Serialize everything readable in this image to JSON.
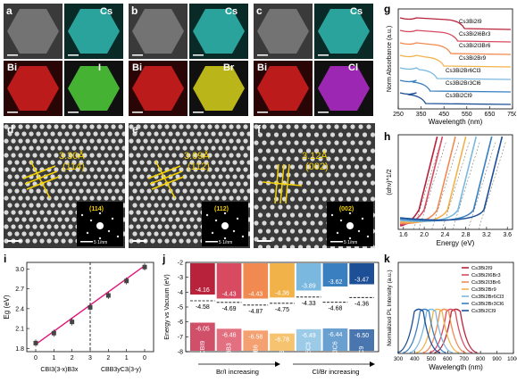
{
  "panels_ac": [
    {
      "letter": "a",
      "labels": [
        "Cs",
        "Bi",
        "I"
      ],
      "colors": [
        "#2fb8b0",
        "#d62020",
        "#4fcf3a"
      ]
    },
    {
      "letter": "b",
      "labels": [
        "Cs",
        "Bi",
        "Br"
      ],
      "colors": [
        "#2fb8b0",
        "#d62020",
        "#d8d21a"
      ]
    },
    {
      "letter": "c",
      "labels": [
        "Cs",
        "Bi",
        "Cl"
      ],
      "colors": [
        "#2fb8b0",
        "#d62020",
        "#b52ccf"
      ]
    }
  ],
  "panels_df": [
    {
      "letter": "d",
      "d": "3.30Å",
      "hkl": "(114)",
      "inset_hkl": "(114)",
      "inset_scale": "5 1/nm"
    },
    {
      "letter": "e",
      "d": "3.09Å",
      "hkl": "(112)",
      "inset_hkl": "(112)",
      "inset_scale": "5 1/nm"
    },
    {
      "letter": "f",
      "d": "3.12Å",
      "hkl": "(002)",
      "inset_hkl": "(002)",
      "inset_scale": "5 1/nm"
    }
  ],
  "panel_g": {
    "letter": "g",
    "ylabel": "Norm Absorbance (a.u.)",
    "xlabel": "Wavelength (nm)",
    "xticks": [
      "250",
      "350",
      "450",
      "550",
      "650",
      "750"
    ],
    "series": [
      {
        "name": "Cs3Bi2I9",
        "color": "#b8223a"
      },
      {
        "name": "Cs3Bi2I6Br3",
        "color": "#d84a60"
      },
      {
        "name": "Cs3Bi2I3Br6",
        "color": "#f08a50"
      },
      {
        "name": "Cs3Bi2Br9",
        "color": "#f2b24a"
      },
      {
        "name": "Cs3Bi2Br6Cl3",
        "color": "#7ab8e0"
      },
      {
        "name": "Cs3Bi2Br3Cl6",
        "color": "#3a7fc0"
      },
      {
        "name": "Cs3Bi2Cl9",
        "color": "#1d4f96"
      }
    ]
  },
  "panel_h": {
    "letter": "h",
    "ylabel": "(αhν)^1/2",
    "xlabel": "Energy (eV)",
    "xticks": [
      "1.6",
      "2.0",
      "2.4",
      "2.8",
      "3.2",
      "3.6"
    ]
  },
  "panel_i": {
    "letter": "i",
    "ylabel": "Eg (eV)",
    "yticks": [
      "1.8",
      "2.1",
      "2.4",
      "2.7",
      "3.0"
    ],
    "xticks": [
      "0",
      "1",
      "2",
      "3",
      "2",
      "1",
      "0"
    ],
    "xlabel_left": "CBI3(3-x)B3x",
    "xlabel_right": "CBB3yC3(3-y)"
  },
  "panel_j": {
    "letter": "j",
    "ylabel": "Energy vs Vacuum (eV)",
    "yticks": [
      "-2",
      "-3",
      "-4",
      "-5",
      "-6",
      "-7",
      "-8"
    ],
    "columns": [
      {
        "name": "CBI9",
        "cb": "-4.16",
        "vb": "-6.05",
        "fermi": "-4.58",
        "color_top": "#b8223a",
        "color_bot": "#d0506a"
      },
      {
        "name": "CBI6B3",
        "cb": "-4.43",
        "vb": "-6.46",
        "fermi": "-4.69",
        "color_top": "#d84a60",
        "color_bot": "#e27080"
      },
      {
        "name": "CBI3B6",
        "cb": "-4.43",
        "vb": "-6.58",
        "fermi": "-4.87",
        "color_top": "#f08a50",
        "color_bot": "#f4a070"
      },
      {
        "name": "CBB9",
        "cb": "-4.36",
        "vb": "-6.78",
        "fermi": "-4.75",
        "color_top": "#f2b24a",
        "color_bot": "#f6c470"
      },
      {
        "name": "CBB6C3",
        "cb": "-3.89",
        "vb": "-6.49",
        "fermi": "-4.33",
        "color_top": "#7ab8e0",
        "color_bot": "#9ccbe8"
      },
      {
        "name": "CBB3C6",
        "cb": "-3.62",
        "vb": "-6.44",
        "fermi": "-4.68",
        "color_top": "#3a7fc0",
        "color_bot": "#6aa0d0"
      },
      {
        "name": "CBC9",
        "cb": "-3.47",
        "vb": "-6.50",
        "fermi": "-4.36",
        "color_top": "#1d4f96",
        "color_bot": "#4a76b0"
      }
    ],
    "arrow_left": "Br/I increasing",
    "arrow_right": "Cl/Br increasing"
  },
  "panel_k": {
    "letter": "k",
    "ylabel": "Normalized PL Intensity (a.u.)",
    "xlabel": "Wavelength (nm)",
    "xticks": [
      "300",
      "400",
      "500",
      "600",
      "700",
      "800",
      "900",
      "1000"
    ],
    "legend": [
      "Cs3Bi2I9",
      "Cs3Bi2I6Br3",
      "Cs3Bi2I3Br6",
      "Cs3Bi2Br9",
      "Cs3Bi2Br6Cl3",
      "Cs3Bi2Br3Cl6",
      "Cs3Bi2Cl9"
    ]
  },
  "chart_data": [
    {
      "type": "line",
      "title": "",
      "xlabel": "Wavelength (nm)",
      "ylabel": "Norm Absorbance (a.u.)",
      "xlim": [
        250,
        750
      ],
      "series": [
        {
          "name": "Cs3Bi2I9",
          "edge": 540
        },
        {
          "name": "Cs3Bi2I6Br3",
          "edge": 510
        },
        {
          "name": "Cs3Bi2I3Br6",
          "edge": 480
        },
        {
          "name": "Cs3Bi2Br9",
          "edge": 450
        },
        {
          "name": "Cs3Bi2Br6Cl3",
          "edge": 420
        },
        {
          "name": "Cs3Bi2Br3Cl6",
          "edge": 390
        },
        {
          "name": "Cs3Bi2Cl9",
          "edge": 370
        }
      ]
    },
    {
      "type": "scatter",
      "xlabel": "",
      "ylabel": "Eg (eV)",
      "ylim": [
        1.75,
        3.1
      ],
      "x": [
        0,
        1,
        2,
        3,
        4,
        5,
        6
      ],
      "series": [
        {
          "values": [
            1.88,
            2.03,
            2.2,
            2.42,
            2.6,
            2.82,
            3.03
          ]
        }
      ]
    },
    {
      "type": "line",
      "xlabel": "Wavelength (nm)",
      "ylabel": "Normalized PL Intensity (a.u.)",
      "xlim": [
        300,
        1000
      ],
      "series": [
        {
          "name": "Cs3Bi2I9",
          "peak": 650
        },
        {
          "name": "Cs3Bi2I6Br3",
          "peak": 620
        },
        {
          "name": "Cs3Bi2I3Br6",
          "peak": 580
        },
        {
          "name": "Cs3Bi2Br9",
          "peak": 540
        },
        {
          "name": "Cs3Bi2Br6Cl3",
          "peak": 500
        },
        {
          "name": "Cs3Bi2Br3Cl6",
          "peak": 460
        },
        {
          "name": "Cs3Bi2Cl9",
          "peak": 425
        }
      ]
    }
  ]
}
